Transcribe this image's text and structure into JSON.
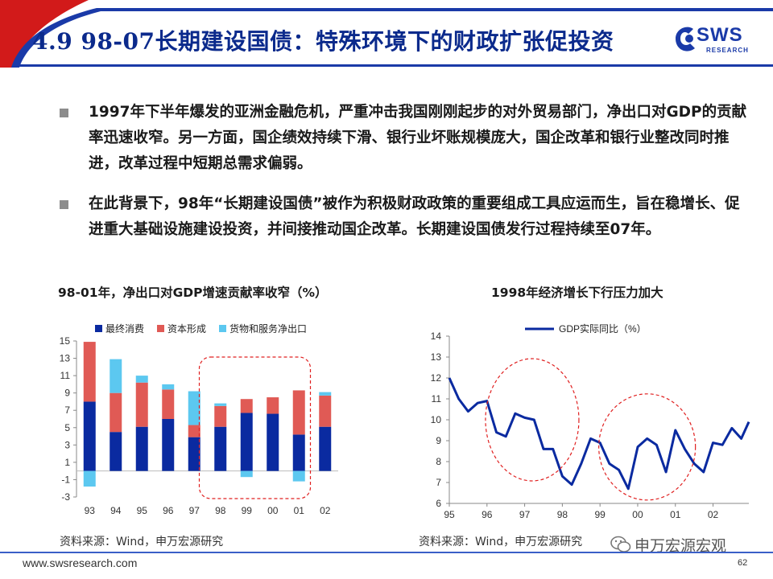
{
  "header": {
    "title": "4.9 98-07长期建设国债：特殊环境下的财政扩张促投资",
    "logo_text": "SWS",
    "logo_sub": "RESEARCH"
  },
  "bullets": [
    "1997年下半年爆发的亚洲金融危机，严重冲击我国刚刚起步的对外贸易部门，净出口对GDP的贡献率迅速收窄。另一方面，国企绩效持续下滑、银行业坏账规模庞大，国企改革和银行业整改同时推进，改革过程中短期总需求偏弱。",
    "在此背景下，98年“长期建设国债”被作为积极财政政策的重要组成工具应运而生，旨在稳增长、促进重大基础设施建设投资，并间接推动国企改革。长期建设国债发行过程持续至07年。"
  ],
  "left_chart": {
    "title": "98-01年，净出口对GDP增速贡献率收窄（%）",
    "source": "资料来源：Wind，申万宏源研究"
  },
  "right_chart": {
    "title": "1998年经济增长下行压力加大",
    "source": "资料来源：Wind，申万宏源研究"
  },
  "chart_data": [
    {
      "type": "bar",
      "stacked": true,
      "title": "98-01年，净出口对GDP增速贡献率收窄（%）",
      "categories": [
        "93",
        "94",
        "95",
        "96",
        "97",
        "98",
        "99",
        "00",
        "01",
        "02"
      ],
      "series": [
        {
          "name": "最终消费",
          "color": "#0a2aa0",
          "values": [
            8.0,
            4.5,
            5.1,
            6.0,
            3.9,
            5.1,
            6.7,
            6.6,
            4.2,
            5.1
          ]
        },
        {
          "name": "资本形成",
          "color": "#e05a55",
          "values": [
            6.9,
            4.5,
            5.1,
            3.4,
            1.4,
            2.4,
            1.6,
            1.9,
            5.1,
            3.6
          ]
        },
        {
          "name": "货物和服务净出口",
          "color": "#5cc8f0",
          "values": [
            -1.8,
            3.9,
            0.8,
            0.6,
            3.9,
            0.3,
            -0.7,
            0.0,
            -1.2,
            0.4
          ]
        }
      ],
      "yticks": [
        -3,
        -1,
        1,
        3,
        5,
        7,
        9,
        11,
        13,
        15
      ],
      "ylim": [
        -3,
        15
      ],
      "highlight_categories": [
        "98",
        "99",
        "00",
        "01"
      ]
    },
    {
      "type": "line",
      "title": "1998年经济增长下行压力加大",
      "series": [
        {
          "name": "GDP实际同比（%）",
          "color": "#0a2aa0",
          "x": [
            1995.0,
            1995.25,
            1995.5,
            1995.75,
            1996.0,
            1996.25,
            1996.5,
            1996.75,
            1997.0,
            1997.25,
            1997.5,
            1997.75,
            1998.0,
            1998.25,
            1998.5,
            1998.75,
            1999.0,
            1999.25,
            1999.5,
            1999.75,
            2000.0,
            2000.25,
            2000.5,
            2000.75,
            2001.0,
            2001.25,
            2001.5,
            2001.75,
            2002.0,
            2002.25,
            2002.5,
            2002.75,
            2002.95
          ],
          "values": [
            12.0,
            11.0,
            10.4,
            10.8,
            10.9,
            9.4,
            9.2,
            10.3,
            10.1,
            10.0,
            8.6,
            8.6,
            7.3,
            6.9,
            7.9,
            9.1,
            8.9,
            7.9,
            7.6,
            6.7,
            8.7,
            9.1,
            8.8,
            7.5,
            9.5,
            8.6,
            7.9,
            7.5,
            8.9,
            8.8,
            9.6,
            9.1,
            9.9
          ]
        }
      ],
      "xticks": [
        "95",
        "96",
        "97",
        "98",
        "99",
        "00",
        "01",
        "02"
      ],
      "yticks": [
        6,
        7,
        8,
        9,
        10,
        11,
        12,
        13,
        14
      ],
      "ylim": [
        6,
        14
      ],
      "highlight_periods": [
        "1996-1998",
        "1999-2001"
      ]
    }
  ],
  "footer": {
    "url": "www.swsresearch.com",
    "page_number": "62",
    "watermark": "申万宏源宏观"
  }
}
